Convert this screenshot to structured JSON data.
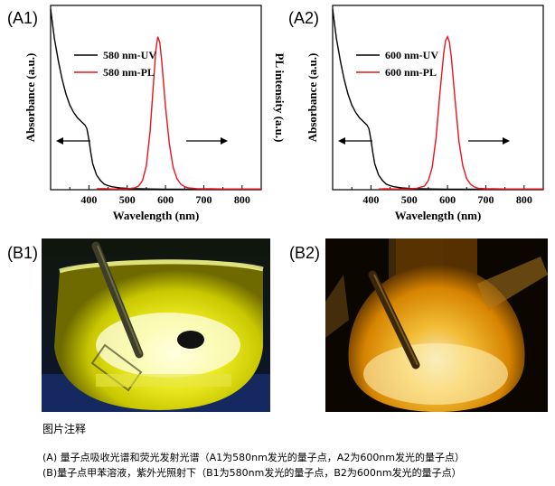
{
  "panels": {
    "a1_label": "(A1)",
    "a2_label": "(A2)",
    "b1_label": "(B1)",
    "b2_label": "(B2)"
  },
  "chart_data": [
    {
      "type": "line",
      "panel": "A1",
      "xlabel": "Wavelength (nm)",
      "ylabel_left": "Absorbance (a.u.)",
      "ylabel_right": "PL intensity (a.u.)",
      "xlim": [
        300,
        850
      ],
      "ylim": [
        0,
        1
      ],
      "x_ticks": [
        400,
        500,
        600,
        700,
        800
      ],
      "legend_position": "top-center",
      "series": [
        {
          "name": "580 nm-UV",
          "color": "#000000",
          "x": [
            300,
            310,
            320,
            330,
            340,
            350,
            360,
            370,
            380,
            390,
            395,
            400,
            405,
            410,
            420,
            430,
            440,
            450,
            460,
            480,
            500,
            530,
            560,
            600,
            650,
            700,
            750,
            800,
            850
          ],
          "y": [
            0.98,
            0.82,
            0.7,
            0.6,
            0.52,
            0.46,
            0.42,
            0.39,
            0.37,
            0.35,
            0.33,
            0.27,
            0.2,
            0.14,
            0.08,
            0.05,
            0.03,
            0.022,
            0.016,
            0.01,
            0.007,
            0.005,
            0.004,
            0.003,
            0.003,
            0.003,
            0.003,
            0.003,
            0.003
          ]
        },
        {
          "name": "580 nm-PL",
          "color": "#e8141c",
          "x": [
            420,
            440,
            460,
            480,
            500,
            520,
            530,
            540,
            550,
            560,
            570,
            575,
            580,
            585,
            590,
            600,
            610,
            620,
            630,
            640,
            650,
            660,
            680,
            700,
            720,
            750,
            800,
            850
          ],
          "y": [
            0.005,
            0.006,
            0.004,
            0.004,
            0.005,
            0.01,
            0.02,
            0.05,
            0.13,
            0.32,
            0.62,
            0.76,
            0.83,
            0.8,
            0.7,
            0.45,
            0.25,
            0.12,
            0.06,
            0.03,
            0.016,
            0.01,
            0.006,
            0.005,
            0.005,
            0.004,
            0.004,
            0.004
          ]
        }
      ]
    },
    {
      "type": "line",
      "panel": "A2",
      "xlabel": "Wavelength (nm)",
      "ylabel_left": "Absorbance (a.u.)",
      "ylabel_right": "PL intensity (a.u.)",
      "xlim": [
        300,
        850
      ],
      "ylim": [
        0,
        1
      ],
      "x_ticks": [
        400,
        500,
        600,
        700,
        800
      ],
      "legend_position": "top-center",
      "series": [
        {
          "name": "600 nm-UV",
          "color": "#000000",
          "x": [
            300,
            310,
            320,
            330,
            340,
            350,
            360,
            370,
            380,
            390,
            395,
            400,
            405,
            410,
            420,
            430,
            440,
            450,
            460,
            480,
            500,
            530,
            560,
            600,
            650,
            700,
            750,
            800,
            850
          ],
          "y": [
            0.98,
            0.82,
            0.7,
            0.6,
            0.52,
            0.46,
            0.42,
            0.39,
            0.37,
            0.35,
            0.33,
            0.27,
            0.2,
            0.14,
            0.08,
            0.05,
            0.03,
            0.022,
            0.016,
            0.01,
            0.007,
            0.005,
            0.004,
            0.003,
            0.003,
            0.003,
            0.003,
            0.003,
            0.003
          ]
        },
        {
          "name": "600 nm-PL",
          "color": "#e8141c",
          "x": [
            420,
            440,
            460,
            480,
            500,
            520,
            540,
            550,
            560,
            570,
            580,
            590,
            595,
            600,
            605,
            610,
            620,
            630,
            640,
            650,
            660,
            670,
            680,
            700,
            720,
            750,
            800,
            850
          ],
          "y": [
            0.004,
            0.005,
            0.004,
            0.004,
            0.005,
            0.008,
            0.02,
            0.05,
            0.12,
            0.28,
            0.52,
            0.74,
            0.81,
            0.83,
            0.8,
            0.72,
            0.48,
            0.26,
            0.13,
            0.06,
            0.03,
            0.015,
            0.008,
            0.005,
            0.005,
            0.004,
            0.004,
            0.004
          ]
        }
      ]
    }
  ],
  "caption": {
    "title": "图片注释",
    "line1": "(A) 量子点吸收光谱和荧光发射光谱（A1为580nm发光的量子点，A2为600nm发光的量子点）",
    "line2": "(B)量子点甲苯溶液，紫外光照射下（B1为580nm发光的量子点，B2为600nm发光的量子点）"
  },
  "colors": {
    "uv_line": "#000000",
    "pl_line": "#e8141c"
  }
}
